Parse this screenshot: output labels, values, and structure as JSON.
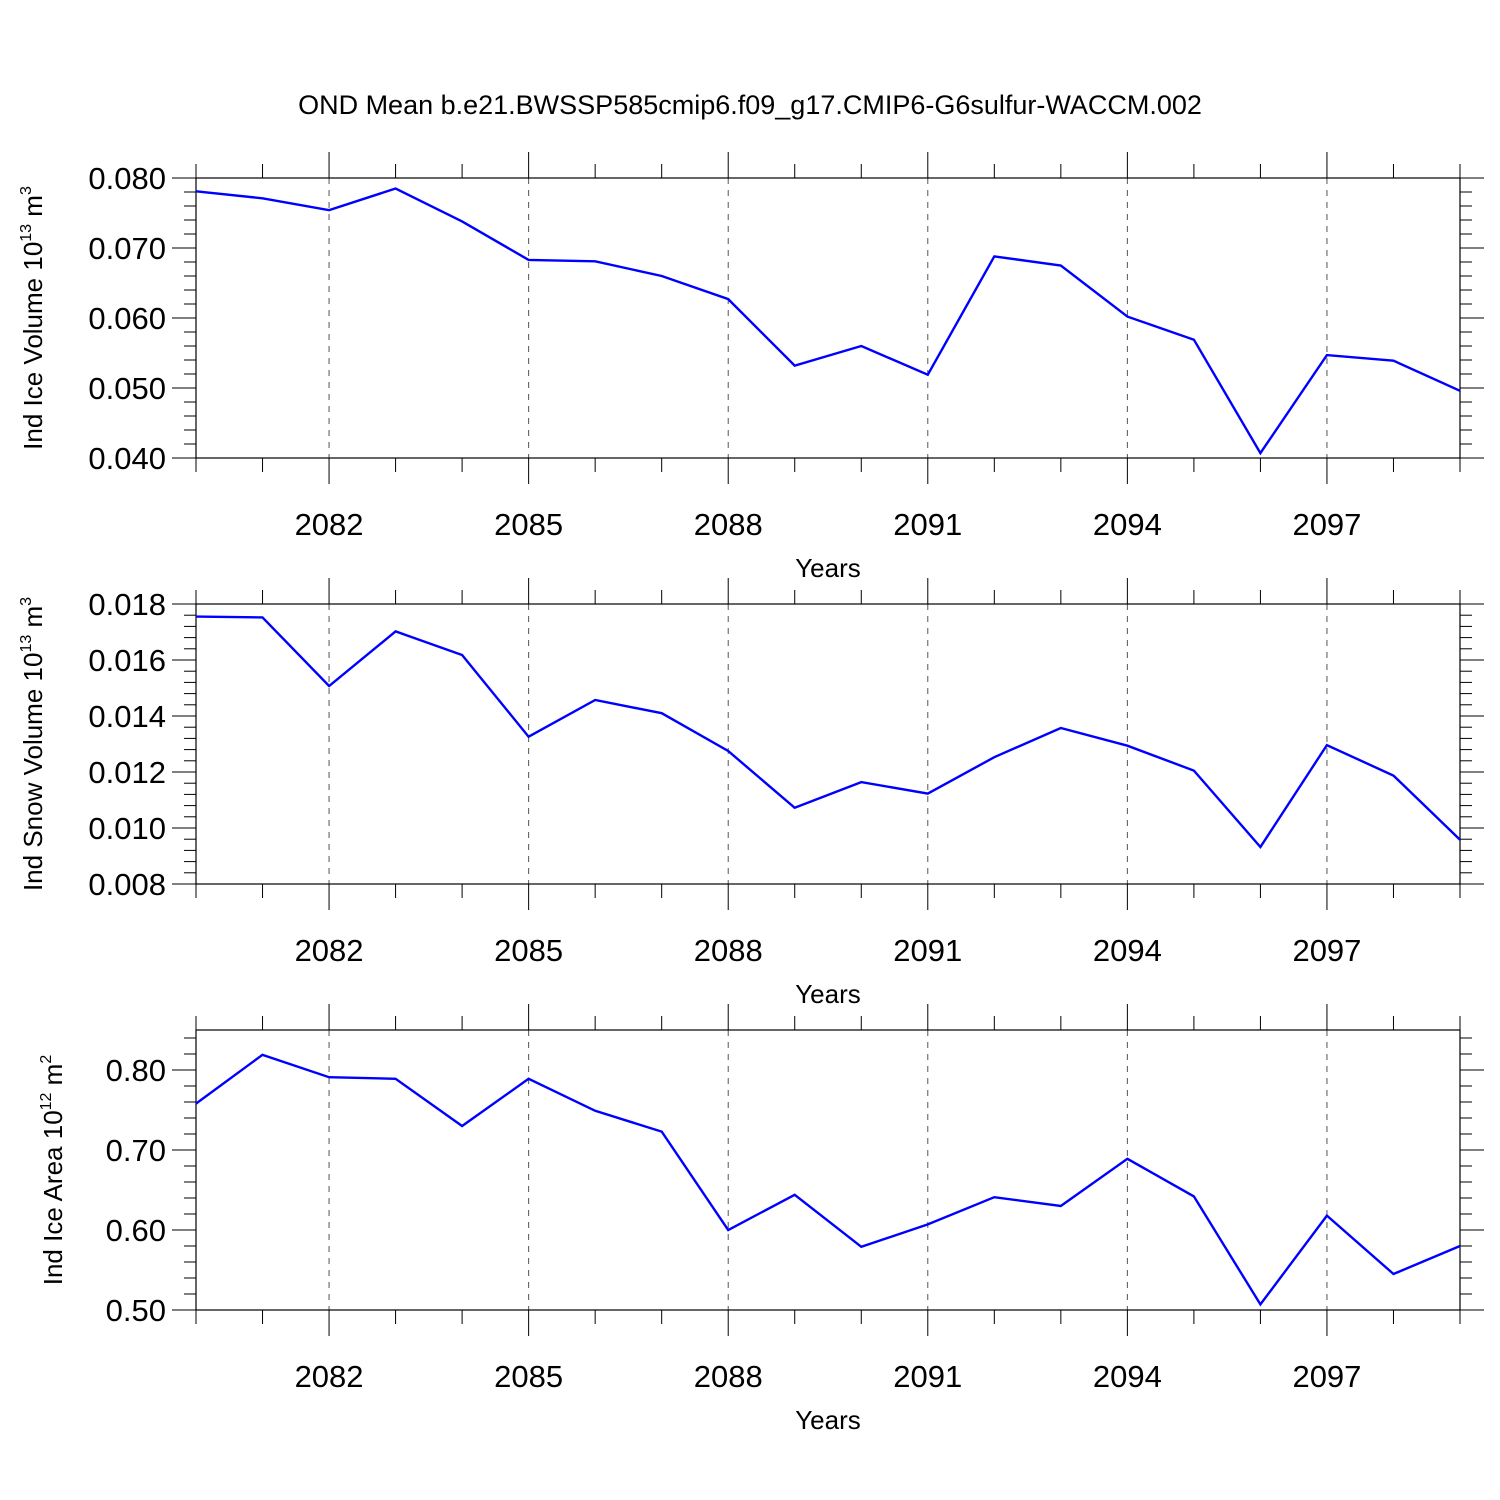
{
  "title": "OND Mean b.e21.BWSSP585cmip6.f09_g17.CMIP6-G6sulfur-WACCM.002",
  "line_color": "#0000ff",
  "chart_data": [
    {
      "type": "line",
      "xlabel": "Years",
      "ylabel": {
        "prefix": "Ind Ice Volume 10",
        "exp": "13",
        "unit": " m",
        "unit_exp": "3"
      },
      "x": [
        2080,
        2081,
        2082,
        2083,
        2084,
        2085,
        2086,
        2087,
        2088,
        2089,
        2090,
        2091,
        2092,
        2093,
        2094,
        2095,
        2096,
        2097,
        2098,
        2099
      ],
      "series": [
        {
          "values": [
            0.0781,
            0.0771,
            0.0754,
            0.0785,
            0.0738,
            0.0683,
            0.0681,
            0.066,
            0.0627,
            0.0532,
            0.056,
            0.0519,
            0.0688,
            0.0675,
            0.0602,
            0.0569,
            0.0407,
            0.0547,
            0.0539,
            0.0496
          ]
        }
      ],
      "ylim": [
        0.04,
        0.08
      ],
      "yticks": [
        0.04,
        0.05,
        0.06,
        0.07,
        0.08
      ],
      "ytick_labels": [
        "0.040",
        "0.050",
        "0.060",
        "0.070",
        "0.080"
      ],
      "xticks": [
        2082,
        2085,
        2088,
        2091,
        2094,
        2097
      ],
      "xtick_labels": [
        "2082",
        "2085",
        "2088",
        "2091",
        "2094",
        "2097"
      ],
      "xlim": [
        2080,
        2099
      ],
      "grid": "vertical dashed at labeled years"
    },
    {
      "type": "line",
      "xlabel": "Years",
      "ylabel": {
        "prefix": "Ind Snow Volume 10",
        "exp": "13",
        "unit": " m",
        "unit_exp": "3"
      },
      "x": [
        2080,
        2081,
        2082,
        2083,
        2084,
        2085,
        2086,
        2087,
        2088,
        2089,
        2090,
        2091,
        2092,
        2093,
        2094,
        2095,
        2096,
        2097,
        2098,
        2099
      ],
      "series": [
        {
          "values": [
            0.01755,
            0.01752,
            0.01507,
            0.01702,
            0.01618,
            0.01326,
            0.01457,
            0.0141,
            0.01275,
            0.01072,
            0.01164,
            0.01123,
            0.01253,
            0.01357,
            0.01294,
            0.01205,
            0.00932,
            0.01296,
            0.01187,
            0.00958
          ]
        }
      ],
      "ylim": [
        0.008,
        0.018
      ],
      "yticks": [
        0.008,
        0.01,
        0.012,
        0.014,
        0.016,
        0.018
      ],
      "ytick_labels": [
        "0.008",
        "0.010",
        "0.012",
        "0.014",
        "0.016",
        "0.018"
      ],
      "xticks": [
        2082,
        2085,
        2088,
        2091,
        2094,
        2097
      ],
      "xtick_labels": [
        "2082",
        "2085",
        "2088",
        "2091",
        "2094",
        "2097"
      ],
      "xlim": [
        2080,
        2099
      ],
      "grid": "vertical dashed at labeled years"
    },
    {
      "type": "line",
      "xlabel": "Years",
      "ylabel": {
        "prefix": "Ind Ice Area 10",
        "exp": "12",
        "unit": " m",
        "unit_exp": "2"
      },
      "x": [
        2080,
        2081,
        2082,
        2083,
        2084,
        2085,
        2086,
        2087,
        2088,
        2089,
        2090,
        2091,
        2092,
        2093,
        2094,
        2095,
        2096,
        2097,
        2098,
        2099
      ],
      "series": [
        {
          "values": [
            0.758,
            0.819,
            0.791,
            0.789,
            0.73,
            0.789,
            0.749,
            0.723,
            0.6,
            0.644,
            0.579,
            0.607,
            0.641,
            0.63,
            0.689,
            0.642,
            0.507,
            0.618,
            0.545,
            0.58
          ]
        }
      ],
      "ylim": [
        0.5,
        0.85
      ],
      "yticks": [
        0.5,
        0.6,
        0.7,
        0.8
      ],
      "ytick_labels": [
        "0.50",
        "0.60",
        "0.70",
        "0.80"
      ],
      "xticks": [
        2082,
        2085,
        2088,
        2091,
        2094,
        2097
      ],
      "xtick_labels": [
        "2082",
        "2085",
        "2088",
        "2091",
        "2094",
        "2097"
      ],
      "xlim": [
        2080,
        2099
      ],
      "grid": "vertical dashed at labeled years"
    }
  ]
}
